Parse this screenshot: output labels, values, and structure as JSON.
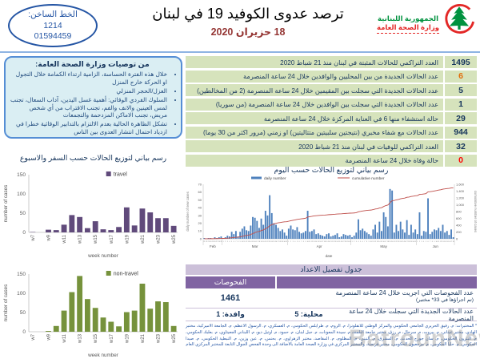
{
  "header": {
    "hotline": {
      "label": "الخط الساخن:",
      "short_number": "1214",
      "long_number": "01594459"
    },
    "title": "ترصد عدوى الكوفيد 19 في لبنان",
    "date": "18 حزيران 2020",
    "ministry": {
      "line1": "الجمهورية اللبنانية",
      "line2": "وزارة الصحة العامة"
    }
  },
  "recommendations": {
    "title": "من توصيات وزارة الصحة العامة:",
    "items": [
      "خلال هذه الفترة الحساسة، الزامية ارتداء الكمامة خلال التجول او الحركة خارج المنزل",
      "العزل/الحجر المنزلي",
      "السلوك الفردي الوقائي: أهمية غسل اليدين، آداب السعال، تجنب لمس العينين والانف والفم، تجنب الاقتراب من أي شخص مريض، تجنب الاماكن المزدحمة والتجمعات",
      "تشكل الظاهرة الحالية بعدم الالتزام بالتدابير الوقائية خطرا في ازدياد احتمال انتشار العدوى بين الناس"
    ]
  },
  "stats": {
    "rows": [
      {
        "label": "العدد التراكمي للحالات المثبتة في لبنان منذ 21 شباط 2020",
        "value": "1495",
        "value_color": "#17365d"
      },
      {
        "label": "عدد الحالات الجديدة من بين المحليين والوافدين خلال 24 ساعة المنصرمة",
        "value": "6",
        "value_color": "#e36c09"
      },
      {
        "label": "عدد الحالات الجديدة التي سجلت بين المقيمين خلال 24 ساعة المنصرمة (2 من المخالطين)",
        "value": "5",
        "value_color": "#17365d"
      },
      {
        "label": "عدد الحالات الجديدة التي سجلت بين الوافدين خلال 24 ساعة المنصرمة (من سوريا)",
        "value": "1",
        "value_color": "#17365d"
      },
      {
        "label": "حالة استشفاء منها 6 في العناية المركزة خلال 24 ساعة المنصرمة",
        "value": "29",
        "value_color": "#17365d"
      },
      {
        "label": "عدد الحالات مع شفاء مخبري (نتيجتين سلبيتين متتاليتين) او زمني (مرور اكثر من 30 يوما)",
        "value": "944",
        "value_color": "#17365d"
      },
      {
        "label": "العدد التراكمي للوفيات في لبنان منذ 21 شباط 2020",
        "value": "32",
        "value_color": "#17365d"
      },
      {
        "label": "حالة وفاة خلال 24 ساعة المنصرمة",
        "value": "0",
        "value_color": "#ff0000"
      }
    ]
  },
  "chart_data": [
    {
      "type": "bar",
      "name": "travel-by-week",
      "title": "رسم بياني لتوزيع الحالات حسب السفر والاسبوع",
      "legend": "travel",
      "color": "#604a7b",
      "xlabel": "week number",
      "ylabel": "number of cases",
      "ylim": [
        0,
        150
      ],
      "categories": [
        "w7",
        "w8",
        "w9",
        "w10",
        "w11",
        "w12",
        "w13",
        "w14",
        "w15",
        "w16",
        "w17",
        "w18",
        "w19",
        "w20",
        "w21",
        "w22",
        "w23",
        "w24",
        "w25"
      ],
      "values": [
        1,
        0,
        7,
        6,
        20,
        45,
        40,
        11,
        29,
        8,
        6,
        14,
        65,
        18,
        62,
        52,
        37,
        37,
        17
      ]
    },
    {
      "type": "bar",
      "name": "nontravel-by-week",
      "title": "رسم بياني لتوزيع الحالات حسب السفر والاسبوع",
      "legend": "non-travel",
      "color": "#76923c",
      "xlabel": "week number",
      "ylabel": "number of cases",
      "ylim": [
        0,
        150
      ],
      "categories": [
        "w7",
        "w8",
        "w9",
        "w10",
        "w11",
        "w12",
        "w13",
        "w14",
        "w15",
        "w16",
        "w17",
        "w18",
        "w19",
        "w20",
        "w21",
        "w22",
        "w23",
        "w24",
        "w25"
      ],
      "values": [
        0,
        0,
        2,
        15,
        55,
        103,
        145,
        85,
        62,
        37,
        26,
        14,
        51,
        55,
        125,
        60,
        79,
        77,
        15
      ]
    },
    {
      "type": "bar+line",
      "name": "cases-by-day",
      "title": "رسم بياني لتوزيع الحالات حسب اليوم",
      "legend_bar": "daily number",
      "legend_line": "cumulative number",
      "bar_color": "#4e81bd",
      "line_color": "#bf4e4a",
      "xlabel": "date",
      "ylabel_left": "daily number of new cases",
      "ylabel_right": "cumulative number of cases",
      "left_ylim": [
        0,
        70
      ],
      "right_ylim": [
        0,
        1600
      ],
      "months": [
        {
          "label": "Feb",
          "days": 9,
          "start_day": 21
        },
        {
          "label": "Mar",
          "days": 31,
          "start_day": 1
        },
        {
          "label": "Apr",
          "days": 30,
          "start_day": 1
        },
        {
          "label": "May",
          "days": 31,
          "start_day": 1
        },
        {
          "label": "Jun",
          "days": 18,
          "start_day": 1
        }
      ],
      "daily_values": [
        1,
        0,
        1,
        1,
        0,
        2,
        1,
        2,
        3,
        1,
        2,
        4,
        3,
        9,
        6,
        10,
        3,
        9,
        13,
        16,
        11,
        10,
        17,
        28,
        27,
        23,
        14,
        26,
        18,
        36,
        30,
        56,
        33,
        20,
        18,
        14,
        10,
        12,
        8,
        4,
        13,
        17,
        12,
        11,
        15,
        9,
        7,
        8,
        10,
        36,
        9,
        10,
        12,
        6,
        7,
        5,
        4,
        3,
        6,
        7,
        3,
        4,
        5,
        7,
        2,
        3,
        6,
        5,
        4,
        5,
        2,
        4,
        8,
        25,
        11,
        13,
        10,
        8,
        6,
        4,
        12,
        18,
        8,
        22,
        10,
        34,
        28,
        16,
        64,
        62,
        8,
        18,
        10,
        22,
        12,
        8,
        24,
        5,
        18,
        8,
        12,
        6,
        34,
        4,
        10,
        9,
        52,
        6,
        9,
        12,
        11,
        14,
        10,
        18,
        8,
        10,
        5,
        12,
        2
      ],
      "cumulative_final": 1495
    }
  ],
  "details_table": {
    "title": "جدول تفصيل الاعداد",
    "header": "الفحوصات",
    "row1": {
      "label": "عدد الفحوصات التي اجريت خلال 24 ساعة المنصرمة",
      "sublabel": "(تم اجراؤها في 33* مختبر)",
      "value": "1461"
    },
    "row2": {
      "label": "عدد الحالات الجديدة التي سجلت خلال 24 ساعة المنصرمة",
      "local": "محلية: 5",
      "arrivals": "وافدة: 1"
    }
  },
  "labs_footnote": "* المختبرات: م. رفيق الحريري الجامعي الحكومي والمركز الوطني للانفلونزا، م. الروم، م. طرابلس الحكومي، م. العسكري، م. الرسول الاعظم، م. الجامعة الاميركية، مختبر الهادي، مختبر عيتاني، م. بيروت، م. سرحال، م. رزق، مختبر جامعة البلمند، م. سيدة المعونات، م. جبل لبنان، م. حمود، م. اوتيل ديو، م. اللبناني الجعيتاوي، م. بعلبك الحكومي، م. البترون الحكومي، م. سان جورج الحدث، م. المشرق، م. النيني، م. المظلوم، م. المقاصد، مختبر الزهراوي، م. بحنس، م. عين وزين، م. النبطية الحكومي، م. صيدا الحكومي، م. حلبا الحكومي، م. مرجعيون الحكومي، مختبر فرنجية، والمختبر المركزي في وزارة الصحة العامة بالاضافة الى وحدة الفحص الجوال التابعة للمختبر المركزي العام",
  "watermark": "BatrounNews",
  "colors": {
    "stats_row_bg": "#d6e3bc",
    "table_header_purple": "#8064a2",
    "table_title_purple": "#ccc0d9",
    "header_rule_blue": "#8eb4e3",
    "hotline_blue": "#2455a4",
    "date_red": "#953735",
    "ministry_green": "#00923f",
    "ministry_red": "#e32726"
  }
}
